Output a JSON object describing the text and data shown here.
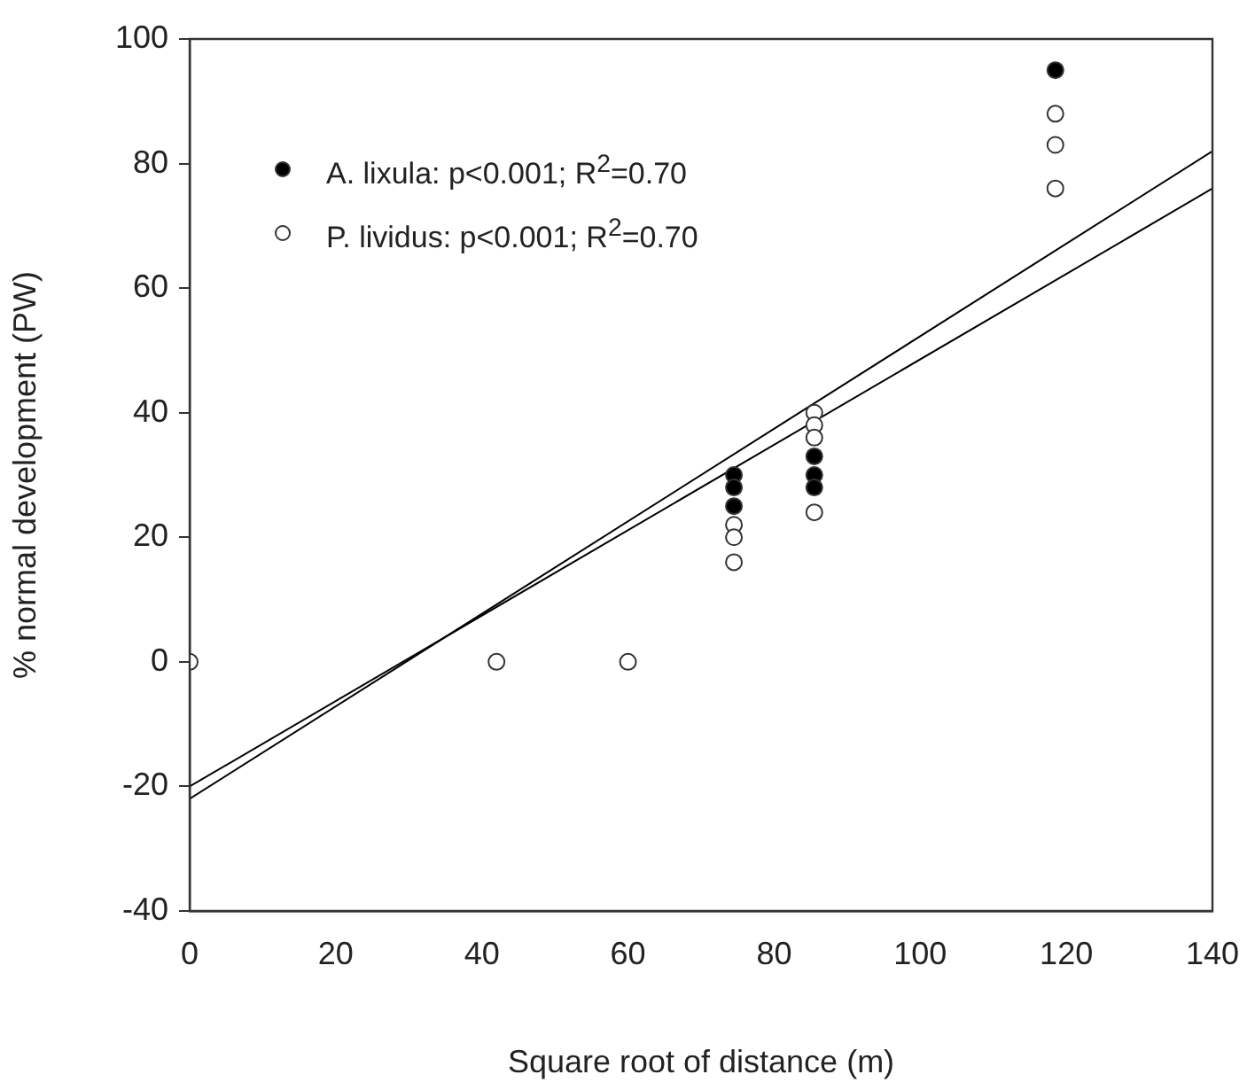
{
  "chart_data": {
    "type": "scatter",
    "xlabel": "Square root of distance (m)",
    "ylabel": "% normal development (PW)",
    "xlim": [
      0,
      140
    ],
    "xticks": [
      0,
      20,
      40,
      60,
      80,
      100,
      120,
      140
    ],
    "ylim": [
      -40,
      100
    ],
    "yticks": [
      -40,
      -20,
      0,
      20,
      40,
      60,
      80,
      100
    ],
    "grid": false,
    "legend": "top left",
    "series": [
      {
        "name": "A. lixula: p<0.001; R$^{2}$=0.70",
        "type": "scatter",
        "marker": "circle",
        "color": "#000000",
        "x": [
          74.5,
          74.5,
          74.5,
          85.5,
          85.5,
          85.5,
          118.5
        ],
        "values": [
          30,
          28,
          25,
          33,
          30,
          28,
          95
        ]
      },
      {
        "name": "P. lividus: p<0.001; R$^{2}$=0.70",
        "type": "scatter",
        "marker": "circle",
        "color": "#ffffff",
        "x": [
          0,
          42,
          60,
          74.5,
          74.5,
          74.5,
          85.5,
          85.5,
          85.5,
          85.5,
          118.5,
          118.5,
          118.5
        ],
        "values": [
          0,
          0,
          0,
          22,
          20,
          16,
          40,
          38,
          36,
          24,
          88,
          83,
          76
        ]
      },
      {
        "type": "line",
        "color": "#000000",
        "x": [
          0,
          140
        ],
        "values": [
          -20,
          76
        ]
      },
      {
        "type": "line",
        "color": "#000000",
        "x": [
          0,
          140
        ],
        "values": [
          -22,
          82
        ]
      }
    ]
  }
}
